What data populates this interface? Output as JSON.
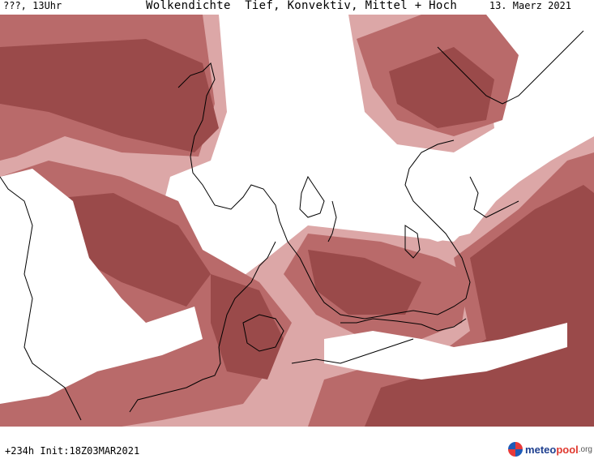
{
  "header": {
    "left": "???, 13Uhr",
    "title": "Wolkendichte  Tief, Konvektiv, Mittel + Hoch",
    "date": "13. Maerz 2021"
  },
  "footer": {
    "run_info": "+234h  Init:18Z03MAR2021",
    "logo": {
      "part1": "meteo",
      "part2": "pool",
      "part3": ".org"
    }
  },
  "colors": {
    "cloud_dense": "#9a4a4a",
    "cloud_medium": "#b96a6a",
    "cloud_light": "#dca7a7",
    "background": "#ffffff",
    "coast": "#000000"
  }
}
